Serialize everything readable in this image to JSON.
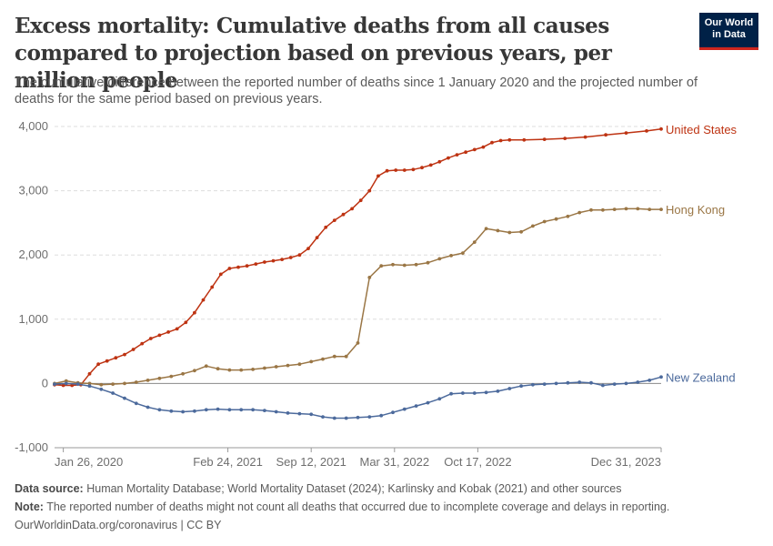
{
  "title": "Excess mortality: Cumulative deaths from all causes compared to projection based on previous years, per million people",
  "subtitle": "The cumulative difference between the reported number of deaths since 1 January 2020 and the projected number of deaths for the same period based on previous years.",
  "logo": {
    "line1": "Our World",
    "line2": "in Data"
  },
  "footer": {
    "source_label": "Data source:",
    "source_text": "Human Mortality Database; World Mortality Dataset (2024); Karlinsky and Kobak (2021) and other sources",
    "note_label": "Note:",
    "note_text": "The reported number of deaths might not count all deaths that occurred due to incomplete coverage and delays in reporting.",
    "url_text": "OurWorldinData.org/coronavirus | CC BY"
  },
  "chart_data": {
    "type": "line",
    "title": "Excess mortality: Cumulative deaths from all causes compared to projection based on previous years, per million people",
    "xlabel": "",
    "ylabel": "",
    "ylim": [
      -1000,
      4000
    ],
    "yticks": [
      -1000,
      0,
      1000,
      2000,
      3000,
      4000
    ],
    "ytick_labels": [
      "-1,000",
      "0",
      "1,000",
      "2,000",
      "3,000",
      "4,000"
    ],
    "xlim": [
      "2020-01-05",
      "2023-12-31"
    ],
    "xticks": [
      "2020-01-26",
      "2021-02-24",
      "2021-09-12",
      "2022-03-31",
      "2022-10-17",
      "2023-12-31"
    ],
    "xtick_labels": [
      "Jan 26, 2020",
      "Feb 24, 2021",
      "Sep 12, 2021",
      "Mar 31, 2022",
      "Oct 17, 2022",
      "Dec 31, 2023"
    ],
    "grid": "horizontal dashed",
    "legend": "line-end labels on the right",
    "series": [
      {
        "name": "United States",
        "color": "#be3312",
        "points": [
          [
            "2020-01-05",
            -20
          ],
          [
            "2020-01-26",
            -30
          ],
          [
            "2020-02-16",
            -30
          ],
          [
            "2020-03-08",
            -20
          ],
          [
            "2020-03-29",
            150
          ],
          [
            "2020-04-19",
            300
          ],
          [
            "2020-05-10",
            350
          ],
          [
            "2020-05-31",
            400
          ],
          [
            "2020-06-21",
            450
          ],
          [
            "2020-07-12",
            530
          ],
          [
            "2020-08-02",
            620
          ],
          [
            "2020-08-23",
            700
          ],
          [
            "2020-09-13",
            750
          ],
          [
            "2020-10-04",
            800
          ],
          [
            "2020-10-25",
            850
          ],
          [
            "2020-11-15",
            950
          ],
          [
            "2020-12-06",
            1100
          ],
          [
            "2020-12-27",
            1300
          ],
          [
            "2021-01-17",
            1500
          ],
          [
            "2021-02-07",
            1700
          ],
          [
            "2021-02-28",
            1790
          ],
          [
            "2021-03-21",
            1810
          ],
          [
            "2021-04-11",
            1830
          ],
          [
            "2021-05-02",
            1860
          ],
          [
            "2021-05-23",
            1890
          ],
          [
            "2021-06-13",
            1910
          ],
          [
            "2021-07-04",
            1930
          ],
          [
            "2021-07-25",
            1960
          ],
          [
            "2021-08-15",
            2000
          ],
          [
            "2021-09-05",
            2100
          ],
          [
            "2021-09-26",
            2270
          ],
          [
            "2021-10-17",
            2430
          ],
          [
            "2021-11-07",
            2540
          ],
          [
            "2021-11-28",
            2630
          ],
          [
            "2021-12-19",
            2720
          ],
          [
            "2022-01-09",
            2850
          ],
          [
            "2022-01-30",
            3000
          ],
          [
            "2022-02-20",
            3230
          ],
          [
            "2022-03-13",
            3310
          ],
          [
            "2022-04-03",
            3320
          ],
          [
            "2022-04-24",
            3320
          ],
          [
            "2022-05-15",
            3330
          ],
          [
            "2022-06-05",
            3360
          ],
          [
            "2022-06-26",
            3400
          ],
          [
            "2022-07-17",
            3450
          ],
          [
            "2022-08-07",
            3510
          ],
          [
            "2022-08-28",
            3560
          ],
          [
            "2022-09-18",
            3600
          ],
          [
            "2022-10-09",
            3640
          ],
          [
            "2022-10-30",
            3680
          ],
          [
            "2022-11-20",
            3750
          ],
          [
            "2022-12-11",
            3780
          ],
          [
            "2023-01-01",
            3790
          ],
          [
            "2023-02-05",
            3790
          ],
          [
            "2023-03-26",
            3800
          ],
          [
            "2023-05-14",
            3815
          ],
          [
            "2023-07-02",
            3835
          ],
          [
            "2023-08-20",
            3870
          ],
          [
            "2023-10-08",
            3900
          ],
          [
            "2023-11-26",
            3930
          ],
          [
            "2023-12-31",
            3960
          ]
        ]
      },
      {
        "name": "Hong Kong",
        "color": "#9a7645",
        "points": [
          [
            "2020-01-05",
            0
          ],
          [
            "2020-02-02",
            40
          ],
          [
            "2020-03-01",
            10
          ],
          [
            "2020-03-29",
            0
          ],
          [
            "2020-04-26",
            -20
          ],
          [
            "2020-05-24",
            -10
          ],
          [
            "2020-06-21",
            0
          ],
          [
            "2020-07-19",
            20
          ],
          [
            "2020-08-16",
            50
          ],
          [
            "2020-09-13",
            80
          ],
          [
            "2020-10-11",
            110
          ],
          [
            "2020-11-08",
            150
          ],
          [
            "2020-12-06",
            200
          ],
          [
            "2021-01-03",
            270
          ],
          [
            "2021-01-31",
            230
          ],
          [
            "2021-02-28",
            210
          ],
          [
            "2021-03-28",
            210
          ],
          [
            "2021-04-25",
            220
          ],
          [
            "2021-05-23",
            240
          ],
          [
            "2021-06-20",
            260
          ],
          [
            "2021-07-18",
            280
          ],
          [
            "2021-08-15",
            300
          ],
          [
            "2021-09-12",
            340
          ],
          [
            "2021-10-10",
            380
          ],
          [
            "2021-11-07",
            420
          ],
          [
            "2021-12-05",
            420
          ],
          [
            "2022-01-02",
            630
          ],
          [
            "2022-01-30",
            1650
          ],
          [
            "2022-02-27",
            1830
          ],
          [
            "2022-03-27",
            1850
          ],
          [
            "2022-04-24",
            1840
          ],
          [
            "2022-05-22",
            1850
          ],
          [
            "2022-06-19",
            1880
          ],
          [
            "2022-07-17",
            1940
          ],
          [
            "2022-08-14",
            1990
          ],
          [
            "2022-09-11",
            2030
          ],
          [
            "2022-10-09",
            2200
          ],
          [
            "2022-11-06",
            2410
          ],
          [
            "2022-12-04",
            2380
          ],
          [
            "2023-01-01",
            2350
          ],
          [
            "2023-01-29",
            2360
          ],
          [
            "2023-02-26",
            2450
          ],
          [
            "2023-03-26",
            2520
          ],
          [
            "2023-04-23",
            2560
          ],
          [
            "2023-05-21",
            2600
          ],
          [
            "2023-06-18",
            2660
          ],
          [
            "2023-07-16",
            2700
          ],
          [
            "2023-08-13",
            2700
          ],
          [
            "2023-09-10",
            2710
          ],
          [
            "2023-10-08",
            2720
          ],
          [
            "2023-11-05",
            2720
          ],
          [
            "2023-12-03",
            2710
          ],
          [
            "2023-12-31",
            2710
          ]
        ]
      },
      {
        "name": "New Zealand",
        "color": "#4c6a9c",
        "points": [
          [
            "2020-01-05",
            -10
          ],
          [
            "2020-02-02",
            0
          ],
          [
            "2020-03-01",
            -10
          ],
          [
            "2020-03-29",
            -40
          ],
          [
            "2020-04-26",
            -90
          ],
          [
            "2020-05-24",
            -150
          ],
          [
            "2020-06-21",
            -230
          ],
          [
            "2020-07-19",
            -310
          ],
          [
            "2020-08-16",
            -370
          ],
          [
            "2020-09-13",
            -410
          ],
          [
            "2020-10-11",
            -430
          ],
          [
            "2020-11-08",
            -440
          ],
          [
            "2020-12-06",
            -430
          ],
          [
            "2021-01-03",
            -410
          ],
          [
            "2021-01-31",
            -400
          ],
          [
            "2021-02-28",
            -410
          ],
          [
            "2021-03-28",
            -410
          ],
          [
            "2021-04-25",
            -410
          ],
          [
            "2021-05-23",
            -420
          ],
          [
            "2021-06-20",
            -440
          ],
          [
            "2021-07-18",
            -460
          ],
          [
            "2021-08-15",
            -470
          ],
          [
            "2021-09-12",
            -480
          ],
          [
            "2021-10-10",
            -520
          ],
          [
            "2021-11-07",
            -540
          ],
          [
            "2021-12-05",
            -540
          ],
          [
            "2022-01-02",
            -530
          ],
          [
            "2022-01-30",
            -520
          ],
          [
            "2022-02-27",
            -500
          ],
          [
            "2022-03-27",
            -450
          ],
          [
            "2022-04-24",
            -400
          ],
          [
            "2022-05-22",
            -350
          ],
          [
            "2022-06-19",
            -300
          ],
          [
            "2022-07-17",
            -240
          ],
          [
            "2022-08-14",
            -160
          ],
          [
            "2022-09-11",
            -150
          ],
          [
            "2022-10-09",
            -150
          ],
          [
            "2022-11-06",
            -140
          ],
          [
            "2022-12-04",
            -120
          ],
          [
            "2023-01-01",
            -80
          ],
          [
            "2023-01-29",
            -40
          ],
          [
            "2023-02-26",
            -20
          ],
          [
            "2023-03-26",
            -10
          ],
          [
            "2023-04-23",
            0
          ],
          [
            "2023-05-21",
            10
          ],
          [
            "2023-06-18",
            20
          ],
          [
            "2023-07-16",
            10
          ],
          [
            "2023-08-13",
            -30
          ],
          [
            "2023-09-10",
            -10
          ],
          [
            "2023-10-08",
            0
          ],
          [
            "2023-11-05",
            20
          ],
          [
            "2023-12-03",
            50
          ],
          [
            "2023-12-31",
            100
          ]
        ]
      }
    ]
  }
}
